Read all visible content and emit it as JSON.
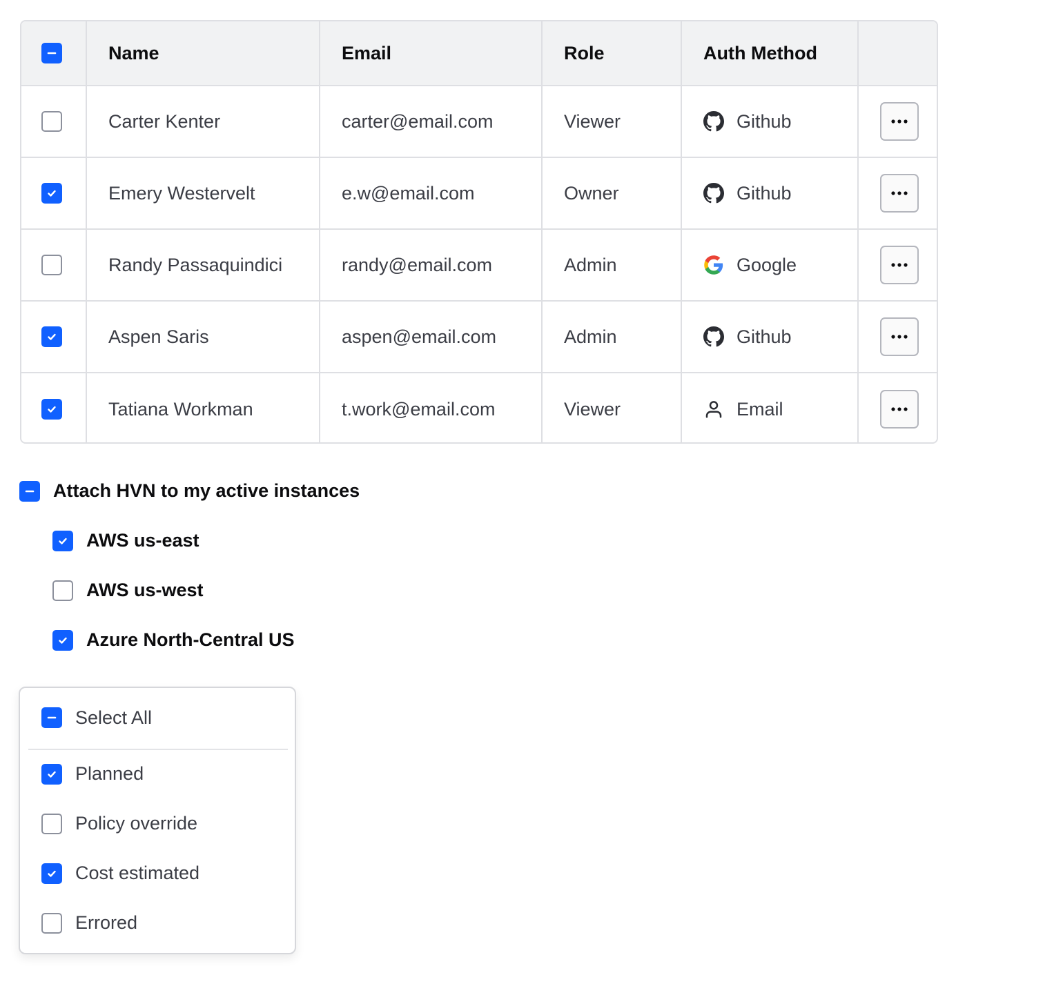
{
  "table": {
    "select_all_state": "indeterminate",
    "columns": [
      "Name",
      "Email",
      "Role",
      "Auth Method",
      ""
    ],
    "rows": [
      {
        "checked": false,
        "name": "Carter Kenter",
        "email": "carter@email.com",
        "role": "Viewer",
        "auth": "Github",
        "auth_icon": "github-icon"
      },
      {
        "checked": true,
        "name": "Emery Westervelt",
        "email": "e.w@email.com",
        "role": "Owner",
        "auth": "Github",
        "auth_icon": "github-icon"
      },
      {
        "checked": false,
        "name": "Randy Passaquindici",
        "email": "randy@email.com",
        "role": "Admin",
        "auth": "Google",
        "auth_icon": "google-icon"
      },
      {
        "checked": true,
        "name": "Aspen Saris",
        "email": "aspen@email.com",
        "role": "Admin",
        "auth": "Github",
        "auth_icon": "github-icon"
      },
      {
        "checked": true,
        "name": "Tatiana Workman",
        "email": "t.work@email.com",
        "role": "Viewer",
        "auth": "Email",
        "auth_icon": "user-icon"
      }
    ]
  },
  "group": {
    "label": "Attach HVN to my active instances",
    "state": "indeterminate",
    "items": [
      {
        "label": "AWS us-east",
        "checked": true
      },
      {
        "label": "AWS us-west",
        "checked": false
      },
      {
        "label": "Azure North-Central US",
        "checked": true
      }
    ]
  },
  "dropdown": {
    "select_all_label": "Select All",
    "select_all_state": "indeterminate",
    "items": [
      {
        "label": "Planned",
        "checked": true
      },
      {
        "label": "Policy override",
        "checked": false
      },
      {
        "label": "Cost estimated",
        "checked": true
      },
      {
        "label": "Errored",
        "checked": false
      }
    ]
  },
  "colors": {
    "accent": "#1060ff",
    "border": "#dedfe3",
    "header_bg": "#f1f2f3"
  }
}
